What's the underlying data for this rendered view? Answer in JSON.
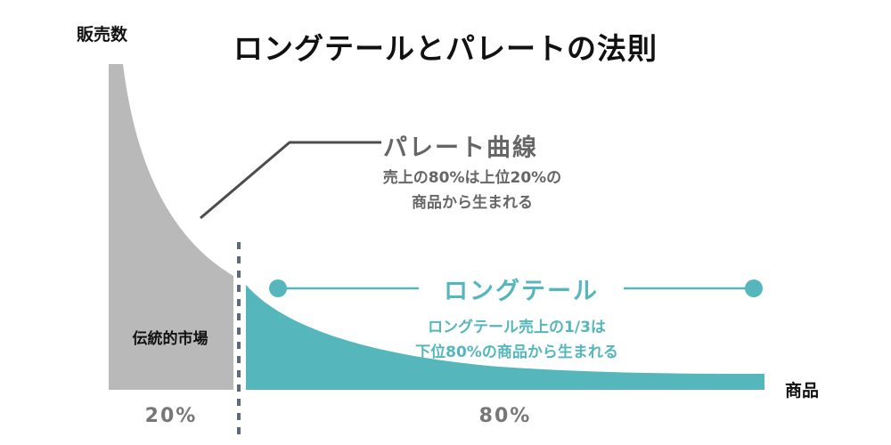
{
  "title": "ロングテールとパレートの法則",
  "y_axis_label": "販売数",
  "x_axis_label": "商品",
  "pareto": {
    "label": "パレート曲線",
    "description_line1": "売上の80%は上位20%の",
    "description_line2": "商品から生まれる"
  },
  "long_tail": {
    "label": "ロングテール",
    "description_line1": "ロングテール売上の1/3は",
    "description_line2": "下位80%の商品から生まれる"
  },
  "traditional_market_label": "伝統的市場",
  "segments": {
    "left_percent": "20%",
    "right_percent": "80%"
  },
  "colors": {
    "head_fill": "#b9b9b9",
    "tail_fill": "#55b7bb",
    "title_text": "#111111",
    "annotation_gray": "#666666",
    "divider": "#5a6a7a"
  }
}
